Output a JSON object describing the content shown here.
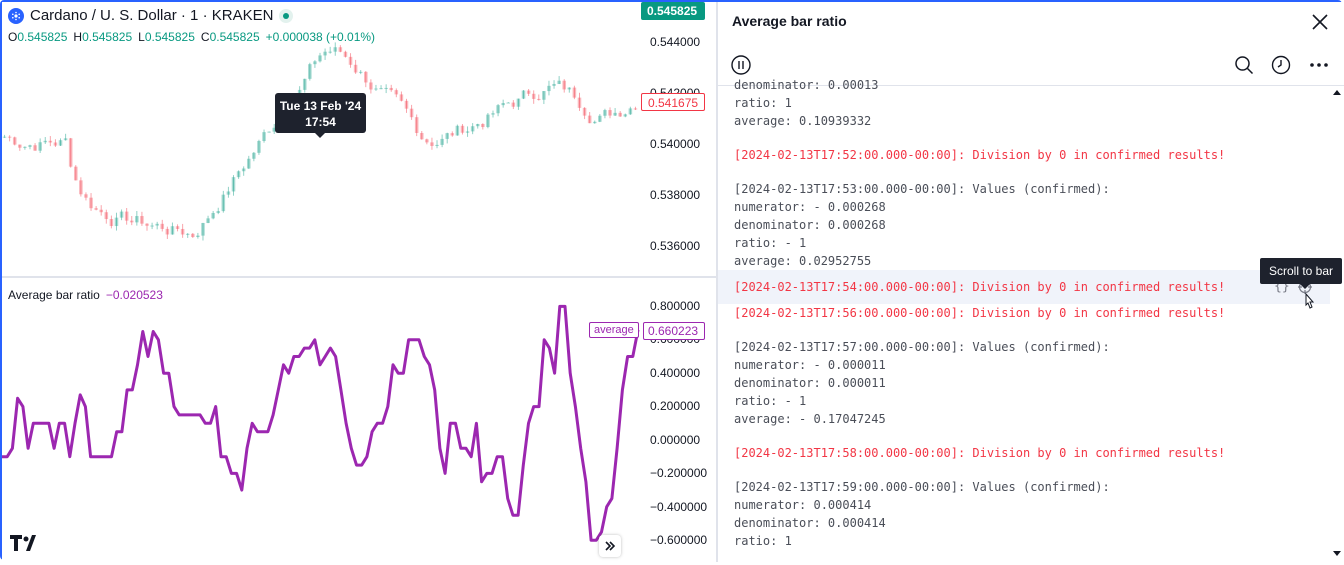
{
  "chart": {
    "symbol": "Cardano / U. S. Dollar · 1 · KRAKEN",
    "ohlc": [
      {
        "k": "O",
        "v": "0.545825"
      },
      {
        "k": "H",
        "v": "0.545825"
      },
      {
        "k": "L",
        "v": "0.545825"
      },
      {
        "k": "C",
        "v": "0.545825"
      }
    ],
    "change": "+0.000038 (+0.01%)",
    "last_price": "0.545825",
    "crosshair_price": "0.541675",
    "tooltip_date": "Tue 13 Feb '24",
    "tooltip_time": "17:54",
    "price_ticks": [
      "0.544000",
      "0.542000",
      "0.540000",
      "0.538000",
      "0.536000"
    ],
    "indicator": {
      "name": "Average bar ratio",
      "value": "−0.020523",
      "plot_name": "average",
      "plot_value": "0.660223",
      "ticks": [
        "0.800000",
        "0.600000",
        "0.400000",
        "0.200000",
        "0.000000",
        "−0.200000",
        "−0.400000",
        "−0.600000"
      ],
      "color": "#9c27b0"
    },
    "colors": {
      "up": "#089981",
      "down": "#f23645"
    }
  },
  "log": {
    "title": "Average bar ratio",
    "tools": [
      "pause-icon",
      "search-icon",
      "clock-icon",
      "more-icon"
    ],
    "entries": [
      {
        "type": "info",
        "lines": [
          "denominator: 0.00013",
          "ratio: 1",
          "average: 0.10939332"
        ]
      },
      {
        "type": "error",
        "lines": [
          "[2024-02-13T17:52:00.000-00:00]: Division by 0 in confirmed results!"
        ]
      },
      {
        "type": "info",
        "lines": [
          "[2024-02-13T17:53:00.000-00:00]: Values (confirmed):",
          "numerator: - 0.000268",
          "denominator: 0.000268",
          "ratio: - 1",
          "average: 0.02952755"
        ]
      },
      {
        "type": "error",
        "highlight": true,
        "lines": [
          "[2024-02-13T17:54:00.000-00:00]: Division by 0 in confirmed results!"
        ]
      },
      {
        "type": "error",
        "lines": [
          "[2024-02-13T17:56:00.000-00:00]: Division by 0 in confirmed results!"
        ]
      },
      {
        "type": "info",
        "lines": [
          "[2024-02-13T17:57:00.000-00:00]: Values (confirmed):",
          "numerator: - 0.000011",
          "denominator: 0.000011",
          "ratio: - 1",
          "average: - 0.17047245"
        ]
      },
      {
        "type": "error",
        "lines": [
          "[2024-02-13T17:58:00.000-00:00]: Division by 0 in confirmed results!"
        ]
      },
      {
        "type": "info",
        "lines": [
          "[2024-02-13T17:59:00.000-00:00]: Values (confirmed):",
          "numerator: 0.000414",
          "denominator: 0.000414",
          "ratio: 1"
        ]
      }
    ],
    "row_tools": {
      "source": "{}",
      "scroll": "scroll-to-bar-icon"
    },
    "hint": "Scroll to bar"
  }
}
